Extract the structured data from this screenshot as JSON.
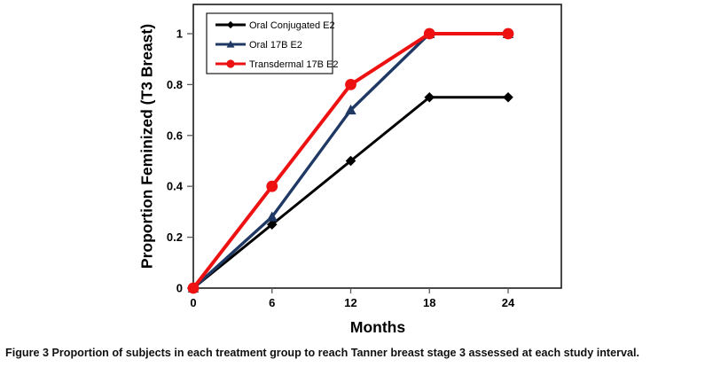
{
  "figure": {
    "caption_label": "Figure 3",
    "caption_text": "Proportion of subjects in each treatment group to reach Tanner breast stage 3 assessed at each study interval."
  },
  "chart_data": {
    "type": "line",
    "title": "",
    "xlabel": "Months",
    "ylabel": "Proportion Feminized (T3 Breast)",
    "x": [
      0,
      6,
      12,
      18,
      24
    ],
    "xticks": [
      "0",
      "6",
      "12",
      "18",
      "24"
    ],
    "yticks": [
      "0",
      "0.2",
      "0.4",
      "0.6",
      "0.8",
      "1"
    ],
    "xlim": [
      0,
      28
    ],
    "ylim": [
      0,
      1.1
    ],
    "grid": false,
    "legend_position": "top-left-inside",
    "background_color": "#ffffff",
    "axis_color": "#595959",
    "border_color": "#1a1a1a",
    "series": [
      {
        "name": "Oral Conjugated E2",
        "color": "#000000",
        "marker": "diamond",
        "values": [
          0,
          0.25,
          0.5,
          0.75,
          0.75
        ]
      },
      {
        "name": "Oral 17B E2",
        "color": "#1f3864",
        "marker": "triangle",
        "values": [
          0,
          0.28,
          0.7,
          1,
          1
        ]
      },
      {
        "name": "Transdermal 17B E2",
        "color": "#ee1111",
        "marker": "circle",
        "values": [
          0,
          0.4,
          0.8,
          1,
          1
        ]
      }
    ]
  }
}
